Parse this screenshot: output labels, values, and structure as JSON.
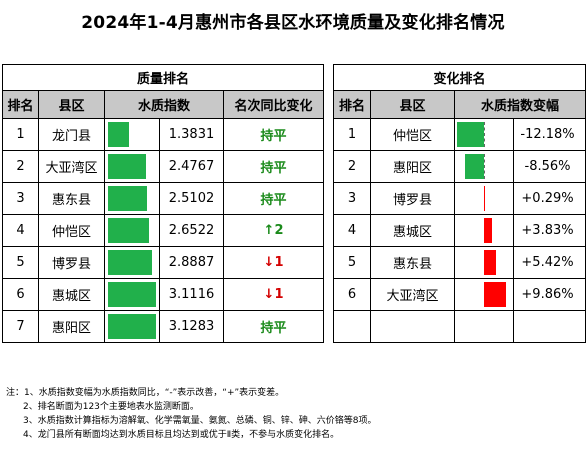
{
  "title": "2024年1-4月惠州市各县区水环境质量及变化排名情况",
  "colors": {
    "green": "#21b04b",
    "red": "#ff0000",
    "header_gray": "#c8c8c8"
  },
  "left": {
    "section_title": "质量排名",
    "headers": [
      "排名",
      "县区",
      "水质指数",
      "名次同比变化"
    ],
    "index_max": 3.1283,
    "rows": [
      {
        "rank": "1",
        "county": "龙门县",
        "index": 1.3831,
        "index_text": "1.3831",
        "change": "持平",
        "change_type": "flat"
      },
      {
        "rank": "2",
        "county": "大亚湾区",
        "index": 2.4767,
        "index_text": "2.4767",
        "change": "持平",
        "change_type": "flat"
      },
      {
        "rank": "3",
        "county": "惠东县",
        "index": 2.5102,
        "index_text": "2.5102",
        "change": "持平",
        "change_type": "flat"
      },
      {
        "rank": "4",
        "county": "仲恺区",
        "index": 2.6522,
        "index_text": "2.6522",
        "change": "↑2",
        "change_type": "up"
      },
      {
        "rank": "5",
        "county": "博罗县",
        "index": 2.8887,
        "index_text": "2.8887",
        "change": "↓1",
        "change_type": "down"
      },
      {
        "rank": "6",
        "county": "惠城区",
        "index": 3.1116,
        "index_text": "3.1116",
        "change": "↓1",
        "change_type": "down"
      },
      {
        "rank": "7",
        "county": "惠阳区",
        "index": 3.1283,
        "index_text": "3.1283",
        "change": "持平",
        "change_type": "flat"
      }
    ]
  },
  "right": {
    "section_title": "变化排名",
    "headers": [
      "排名",
      "县区",
      "水质指数变幅"
    ],
    "rows": [
      {
        "rank": "1",
        "county": "仲恺区",
        "change_pct": -12.18,
        "change_text": "-12.18%"
      },
      {
        "rank": "2",
        "county": "惠阳区",
        "change_pct": -8.56,
        "change_text": "-8.56%"
      },
      {
        "rank": "3",
        "county": "博罗县",
        "change_pct": 0.29,
        "change_text": "+0.29%"
      },
      {
        "rank": "4",
        "county": "惠城区",
        "change_pct": 3.83,
        "change_text": "+3.83%"
      },
      {
        "rank": "5",
        "county": "惠东县",
        "change_pct": 5.42,
        "change_text": "+5.42%"
      },
      {
        "rank": "6",
        "county": "大亚湾区",
        "change_pct": 9.86,
        "change_text": "+9.86%"
      }
    ]
  },
  "notes": [
    "注：1、水质指数变幅为水质指数同比，“-”表示改善，“+”表示变差。",
    "2、排名断面为123个主要地表水监测断面。",
    "3、水质指数计算指标为溶解氧、化学需氧量、氨氮、总磷、铜、锌、砷、六价铬等8项。",
    "4、龙门县所有断面均达到水质目标且均达到或优于Ⅱ类，不参与水质变化排名。"
  ]
}
